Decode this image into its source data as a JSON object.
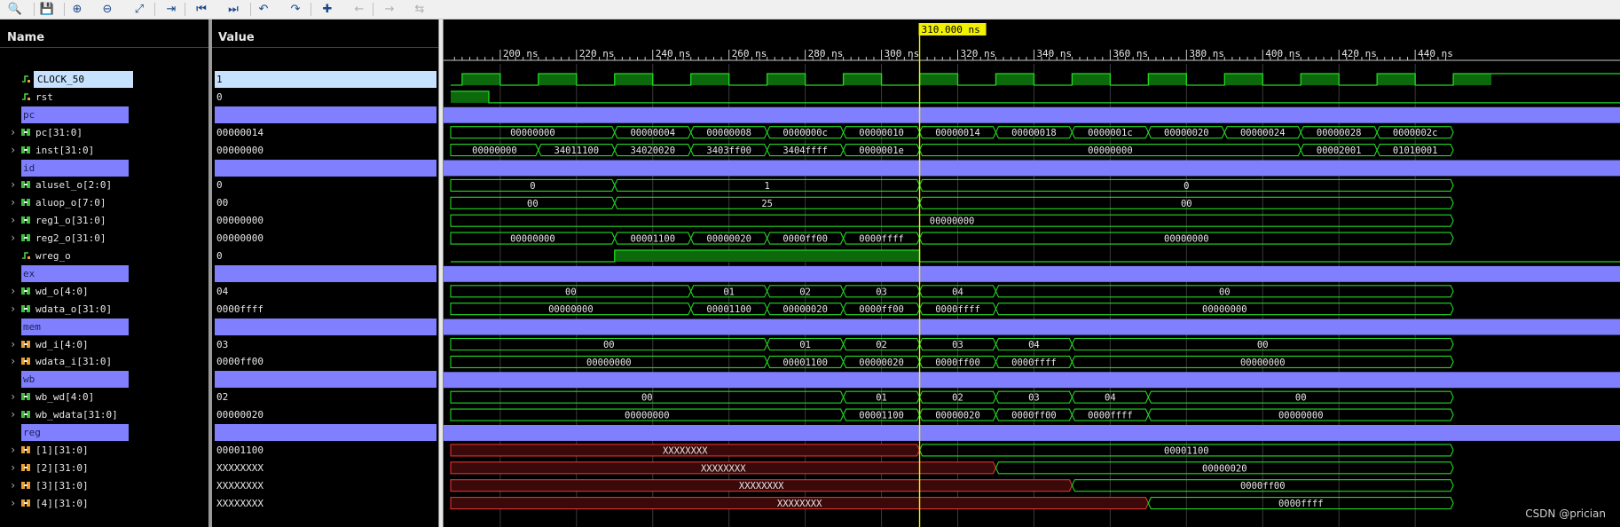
{
  "toolbar": {
    "icons": [
      "search-icon",
      "save-icon",
      "zoom-in-icon",
      "zoom-out-icon",
      "zoom-fit-icon",
      "go-to-cursor-icon",
      "go-to-start-icon",
      "go-to-end-icon",
      "previous-transition-icon",
      "next-transition-icon",
      "add-marker-icon",
      "previous-marker-icon",
      "next-marker-icon",
      "swap-cursors-icon"
    ]
  },
  "headers": {
    "name": "Name",
    "value": "Value"
  },
  "cursor": {
    "time_label": "310.000 ns",
    "time_ns": 310
  },
  "timeline": {
    "start_ns": 187,
    "ns_per_pixel_hint": "",
    "ticks": [
      "200 ns",
      "220 ns",
      "240 ns",
      "260 ns",
      "280 ns",
      "300 ns",
      "320 ns",
      "340 ns",
      "360 ns",
      "380 ns",
      "400 ns",
      "420 ns",
      "440 ns"
    ],
    "tick_ns": [
      200,
      220,
      240,
      260,
      280,
      300,
      320,
      340,
      360,
      380,
      400,
      420,
      440
    ]
  },
  "signals": [
    {
      "name": "CLOCK_50",
      "value": "1",
      "kind": "clock",
      "icon": "bit-signal-icon",
      "expand": false,
      "selected": true
    },
    {
      "name": "rst",
      "value": "0",
      "kind": "bit",
      "icon": "bit-signal-icon",
      "expand": false,
      "rises": [],
      "falls": [
        197
      ],
      "init": 1
    },
    {
      "name": "pc",
      "kind": "divider"
    },
    {
      "name": "pc[31:0]",
      "value": "00000014",
      "kind": "bus",
      "icon": "bus-signal-icon",
      "expand": true,
      "segments": [
        [
          187,
          230,
          "00000000"
        ],
        [
          230,
          250,
          "00000004"
        ],
        [
          250,
          270,
          "00000008"
        ],
        [
          270,
          290,
          "0000000c"
        ],
        [
          290,
          310,
          "00000010"
        ],
        [
          310,
          330,
          "00000014"
        ],
        [
          330,
          350,
          "00000018"
        ],
        [
          350,
          370,
          "0000001c"
        ],
        [
          370,
          390,
          "00000020"
        ],
        [
          390,
          410,
          "00000024"
        ],
        [
          410,
          430,
          "00000028"
        ],
        [
          430,
          450,
          "0000002c"
        ]
      ]
    },
    {
      "name": "inst[31:0]",
      "value": "00000000",
      "kind": "bus",
      "icon": "bus-signal-icon",
      "expand": true,
      "segments": [
        [
          187,
          210,
          "00000000"
        ],
        [
          210,
          230,
          "34011100"
        ],
        [
          230,
          250,
          "34020020"
        ],
        [
          250,
          270,
          "3403ff00"
        ],
        [
          270,
          290,
          "3404ffff"
        ],
        [
          290,
          310,
          "0000001e"
        ],
        [
          310,
          410,
          "00000000"
        ],
        [
          410,
          430,
          "00002001"
        ],
        [
          430,
          450,
          "01010001"
        ]
      ]
    },
    {
      "name": "id",
      "kind": "divider"
    },
    {
      "name": "alusel_o[2:0]",
      "value": "0",
      "kind": "bus",
      "icon": "bus-signal-icon",
      "expand": true,
      "segments": [
        [
          187,
          230,
          "0"
        ],
        [
          230,
          310,
          "1"
        ],
        [
          310,
          450,
          "0"
        ]
      ]
    },
    {
      "name": "aluop_o[7:0]",
      "value": "00",
      "kind": "bus",
      "icon": "bus-signal-icon",
      "expand": true,
      "segments": [
        [
          187,
          230,
          "00"
        ],
        [
          230,
          310,
          "25"
        ],
        [
          310,
          450,
          "00"
        ]
      ]
    },
    {
      "name": "reg1_o[31:0]",
      "value": "00000000",
      "kind": "bus",
      "icon": "bus-signal-icon",
      "expand": true,
      "segments": [
        [
          187,
          450,
          "00000000"
        ]
      ]
    },
    {
      "name": "reg2_o[31:0]",
      "value": "00000000",
      "kind": "bus",
      "icon": "bus-signal-icon",
      "expand": true,
      "segments": [
        [
          187,
          230,
          "00000000"
        ],
        [
          230,
          250,
          "00001100"
        ],
        [
          250,
          270,
          "00000020"
        ],
        [
          270,
          290,
          "0000ff00"
        ],
        [
          290,
          310,
          "0000ffff"
        ],
        [
          310,
          450,
          "00000000"
        ]
      ]
    },
    {
      "name": "wreg_o",
      "value": "0",
      "kind": "bit",
      "icon": "bit-signal-icon",
      "expand": false,
      "init": 0,
      "rises": [
        230
      ],
      "falls": [
        310
      ]
    },
    {
      "name": "ex",
      "kind": "divider"
    },
    {
      "name": "wd_o[4:0]",
      "value": "04",
      "kind": "bus",
      "icon": "bus-signal-icon",
      "expand": true,
      "segments": [
        [
          187,
          250,
          "00"
        ],
        [
          250,
          270,
          "01"
        ],
        [
          270,
          290,
          "02"
        ],
        [
          290,
          310,
          "03"
        ],
        [
          310,
          330,
          "04"
        ],
        [
          330,
          450,
          "00"
        ]
      ]
    },
    {
      "name": "wdata_o[31:0]",
      "value": "0000ffff",
      "kind": "bus",
      "icon": "bus-signal-icon",
      "expand": true,
      "segments": [
        [
          187,
          250,
          "00000000"
        ],
        [
          250,
          270,
          "00001100"
        ],
        [
          270,
          290,
          "00000020"
        ],
        [
          290,
          310,
          "0000ff00"
        ],
        [
          310,
          330,
          "0000ffff"
        ],
        [
          330,
          450,
          "00000000"
        ]
      ]
    },
    {
      "name": "mem",
      "kind": "divider"
    },
    {
      "name": "wd_i[4:0]",
      "value": "03",
      "kind": "bus",
      "icon": "bus-orange-icon",
      "expand": true,
      "segments": [
        [
          187,
          270,
          "00"
        ],
        [
          270,
          290,
          "01"
        ],
        [
          290,
          310,
          "02"
        ],
        [
          310,
          330,
          "03"
        ],
        [
          330,
          350,
          "04"
        ],
        [
          350,
          450,
          "00"
        ]
      ]
    },
    {
      "name": "wdata_i[31:0]",
      "value": "0000ff00",
      "kind": "bus",
      "icon": "bus-orange-icon",
      "expand": true,
      "segments": [
        [
          187,
          270,
          "00000000"
        ],
        [
          270,
          290,
          "00001100"
        ],
        [
          290,
          310,
          "00000020"
        ],
        [
          310,
          330,
          "0000ff00"
        ],
        [
          330,
          350,
          "0000ffff"
        ],
        [
          350,
          450,
          "00000000"
        ]
      ]
    },
    {
      "name": "wb",
      "kind": "divider"
    },
    {
      "name": "wb_wd[4:0]",
      "value": "02",
      "kind": "bus",
      "icon": "bus-signal-icon",
      "expand": true,
      "segments": [
        [
          187,
          290,
          "00"
        ],
        [
          290,
          310,
          "01"
        ],
        [
          310,
          330,
          "02"
        ],
        [
          330,
          350,
          "03"
        ],
        [
          350,
          370,
          "04"
        ],
        [
          370,
          450,
          "00"
        ]
      ]
    },
    {
      "name": "wb_wdata[31:0]",
      "value": "00000020",
      "kind": "bus",
      "icon": "bus-signal-icon",
      "expand": true,
      "segments": [
        [
          187,
          290,
          "00000000"
        ],
        [
          290,
          310,
          "00001100"
        ],
        [
          310,
          330,
          "00000020"
        ],
        [
          330,
          350,
          "0000ff00"
        ],
        [
          350,
          370,
          "0000ffff"
        ],
        [
          370,
          450,
          "00000000"
        ]
      ]
    },
    {
      "name": "reg",
      "kind": "divider"
    },
    {
      "name": "[1][31:0]",
      "value": "00001100",
      "kind": "bus",
      "icon": "bus-orange-icon",
      "expand": true,
      "segments": [
        [
          187,
          310,
          "XXXXXXXX",
          "x"
        ],
        [
          310,
          450,
          "00001100"
        ]
      ]
    },
    {
      "name": "[2][31:0]",
      "value": "XXXXXXXX",
      "kind": "bus",
      "icon": "bus-orange-icon",
      "expand": true,
      "segments": [
        [
          187,
          330,
          "XXXXXXXX",
          "x"
        ],
        [
          330,
          450,
          "00000020"
        ]
      ]
    },
    {
      "name": "[3][31:0]",
      "value": "XXXXXXXX",
      "kind": "bus",
      "icon": "bus-orange-icon",
      "expand": true,
      "segments": [
        [
          187,
          350,
          "XXXXXXXX",
          "x"
        ],
        [
          350,
          450,
          "0000ff00"
        ]
      ]
    },
    {
      "name": "[4][31:0]",
      "value": "XXXXXXXX",
      "kind": "bus",
      "icon": "bus-orange-icon",
      "expand": true,
      "segments": [
        [
          187,
          370,
          "XXXXXXXX",
          "x"
        ],
        [
          370,
          450,
          "0000ffff"
        ]
      ]
    }
  ],
  "clock": {
    "first_rise_ns": 190,
    "period_ns": 20
  },
  "colors": {
    "wave": "#22d822",
    "fill": "#0c6a0c",
    "x": "#e03030",
    "cursor": "#f2f200",
    "divider": "#8080ff",
    "grid": "#3a3a3a"
  },
  "watermark": "CSDN @prician"
}
